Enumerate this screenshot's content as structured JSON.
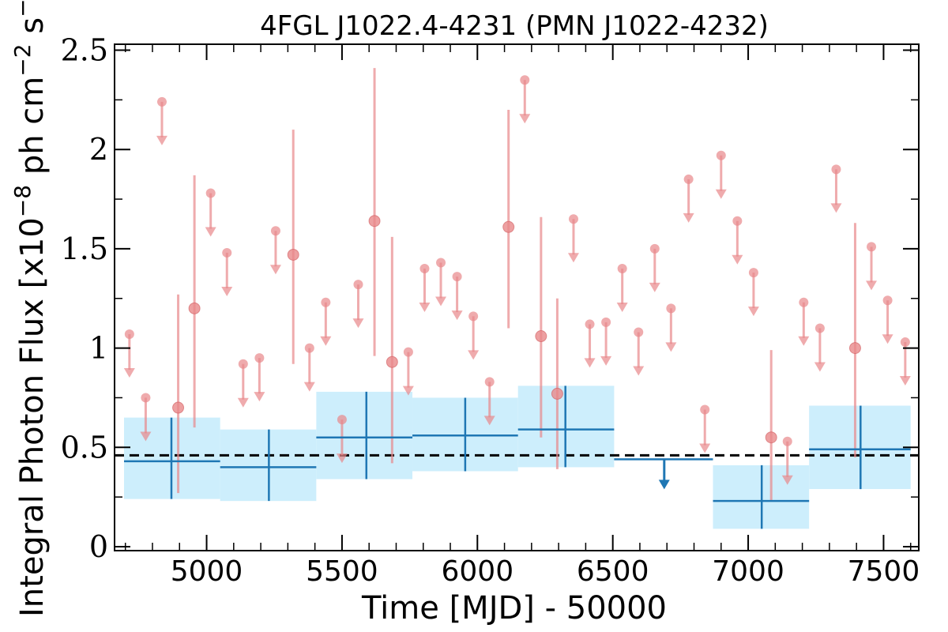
{
  "chart_data": {
    "type": "scatter",
    "title": "4FGL J1022.4-4231 (PMN J1022-4232)",
    "xlabel": "Time [MJD] - 50000",
    "ylabel_parts": {
      "pre": "Integral Photon Flux [x10",
      "exp1": "−8",
      "mid": " ph cm",
      "exp2": "−2",
      "mid2": " s",
      "exp3": "−1",
      "post": "]"
    },
    "xlim": [
      4660,
      7630
    ],
    "ylim": [
      -0.02,
      2.53
    ],
    "x_ticks": [
      5000,
      5500,
      6000,
      6500,
      7000,
      7500
    ],
    "x_tick_labels": [
      "5000",
      "5500",
      "6000",
      "6500",
      "7000",
      "7500"
    ],
    "y_ticks": [
      0,
      0.5,
      1,
      1.5,
      2,
      2.5
    ],
    "y_tick_labels": [
      "0",
      "0.5",
      "1",
      "1.5",
      "2",
      "2.5"
    ],
    "reference_line": {
      "y": 0.46,
      "style": "dashed"
    },
    "colors": {
      "short_bin": "#e8888a",
      "long_bin": "#1f77b4",
      "band": "#cdeefc",
      "reference": "#000000"
    },
    "series": [
      {
        "kind": "short-bin detections",
        "points": [
          {
            "x": 4895,
            "y": 0.7,
            "lo": 0.27,
            "hi": 1.27
          },
          {
            "x": 4955,
            "y": 1.2,
            "lo": 0.6,
            "hi": 1.87
          },
          {
            "x": 5320,
            "y": 1.47,
            "lo": 0.92,
            "hi": 2.1
          },
          {
            "x": 5620,
            "y": 1.64,
            "lo": 0.96,
            "hi": 2.41
          },
          {
            "x": 5685,
            "y": 0.93,
            "lo": 0.42,
            "hi": 1.56
          },
          {
            "x": 6115,
            "y": 1.61,
            "lo": 1.1,
            "hi": 2.2
          },
          {
            "x": 6235,
            "y": 1.06,
            "lo": 0.55,
            "hi": 1.66
          },
          {
            "x": 6295,
            "y": 0.77,
            "lo": 0.39,
            "hi": 1.25
          },
          {
            "x": 7085,
            "y": 0.55,
            "lo": 0.23,
            "hi": 0.99
          },
          {
            "x": 7395,
            "y": 1.0,
            "lo": 0.45,
            "hi": 1.63
          }
        ]
      },
      {
        "kind": "short-bin upper limits",
        "points": [
          {
            "x": 4715,
            "y": 1.07
          },
          {
            "x": 4775,
            "y": 0.75
          },
          {
            "x": 4835,
            "y": 2.24
          },
          {
            "x": 5015,
            "y": 1.78
          },
          {
            "x": 5075,
            "y": 1.48
          },
          {
            "x": 5135,
            "y": 0.92
          },
          {
            "x": 5195,
            "y": 0.95
          },
          {
            "x": 5255,
            "y": 1.59
          },
          {
            "x": 5380,
            "y": 1.0
          },
          {
            "x": 5440,
            "y": 1.23
          },
          {
            "x": 5500,
            "y": 0.64
          },
          {
            "x": 5560,
            "y": 1.32
          },
          {
            "x": 5745,
            "y": 0.98
          },
          {
            "x": 5805,
            "y": 1.4
          },
          {
            "x": 5865,
            "y": 1.43
          },
          {
            "x": 5925,
            "y": 1.36
          },
          {
            "x": 5985,
            "y": 1.16
          },
          {
            "x": 6045,
            "y": 0.83
          },
          {
            "x": 6175,
            "y": 2.35
          },
          {
            "x": 6355,
            "y": 1.65
          },
          {
            "x": 6415,
            "y": 1.12
          },
          {
            "x": 6475,
            "y": 1.13
          },
          {
            "x": 6535,
            "y": 1.4
          },
          {
            "x": 6595,
            "y": 1.08
          },
          {
            "x": 6655,
            "y": 1.5
          },
          {
            "x": 6715,
            "y": 1.2
          },
          {
            "x": 6780,
            "y": 1.85
          },
          {
            "x": 6840,
            "y": 0.69
          },
          {
            "x": 6900,
            "y": 1.97
          },
          {
            "x": 6960,
            "y": 1.64
          },
          {
            "x": 7020,
            "y": 1.38
          },
          {
            "x": 7145,
            "y": 0.53
          },
          {
            "x": 7205,
            "y": 1.23
          },
          {
            "x": 7265,
            "y": 1.1
          },
          {
            "x": 7325,
            "y": 1.9
          },
          {
            "x": 7455,
            "y": 1.51
          },
          {
            "x": 7515,
            "y": 1.24
          },
          {
            "x": 7580,
            "y": 1.03
          }
        ]
      },
      {
        "kind": "long-bin detections",
        "bins": [
          {
            "x0": 4695,
            "x1": 5050,
            "xc": 4870,
            "y": 0.43,
            "lo": 0.24,
            "hi": 0.65
          },
          {
            "x0": 5050,
            "x1": 5405,
            "xc": 5230,
            "y": 0.4,
            "lo": 0.23,
            "hi": 0.59
          },
          {
            "x0": 5405,
            "x1": 5760,
            "xc": 5590,
            "y": 0.55,
            "lo": 0.34,
            "hi": 0.78
          },
          {
            "x0": 5760,
            "x1": 6150,
            "xc": 5955,
            "y": 0.56,
            "lo": 0.38,
            "hi": 0.75
          },
          {
            "x0": 6150,
            "x1": 6505,
            "xc": 6325,
            "y": 0.59,
            "lo": 0.4,
            "hi": 0.81
          },
          {
            "x0": 6870,
            "x1": 7225,
            "xc": 7050,
            "y": 0.23,
            "lo": 0.09,
            "hi": 0.41
          },
          {
            "x0": 7225,
            "x1": 7600,
            "xc": 7415,
            "y": 0.49,
            "lo": 0.29,
            "hi": 0.71
          }
        ]
      },
      {
        "kind": "long-bin upper limits",
        "bins": [
          {
            "x0": 6505,
            "x1": 6870,
            "xc": 6690,
            "y": 0.44
          }
        ]
      }
    ]
  }
}
